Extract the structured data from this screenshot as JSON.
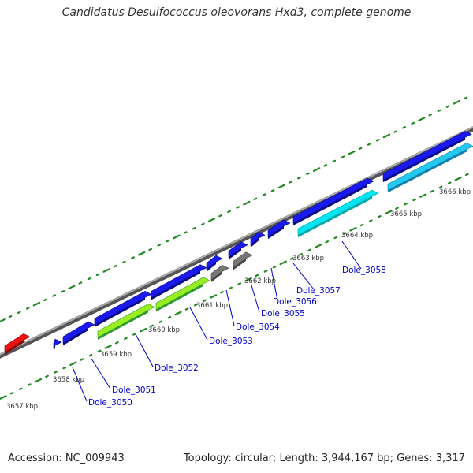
{
  "title": "Candidatus Desulfococcus oleovorans Hxd3, complete genome",
  "footer": {
    "accession": "Accession: NC_009943",
    "stats": "Topology: circular; Length: 3,944,167 bp; Genes: 3,317"
  },
  "colors": {
    "backbone": "#888888",
    "tick_major": "#1e8b1e",
    "tick_minor": "#1e8b1e",
    "gene_blue": "#1a1aee",
    "gene_cyan": "#00e5ee",
    "gene_lightcyan": "#22c8ee",
    "gene_green_light": "#99ee22",
    "gene_green_dark": "#2e9a2e",
    "gene_gray": "#777777",
    "gene_red": "#ee1111",
    "label_blue": "#0000cc"
  },
  "kbp_labels": [
    "3657 kbp",
    "3658 kbp",
    "3659 kbp",
    "3660 kbp",
    "3661 kbp",
    "3662 kbp",
    "3663 kbp",
    "3664 kbp",
    "3665 kbp",
    "3666 kbp"
  ],
  "gene_labels": [
    "Dole_3050",
    "Dole_3051",
    "Dole_3052",
    "Dole_3053",
    "Dole_3054",
    "Dole_3055",
    "Dole_3056",
    "Dole_3057",
    "Dole_3058"
  ]
}
